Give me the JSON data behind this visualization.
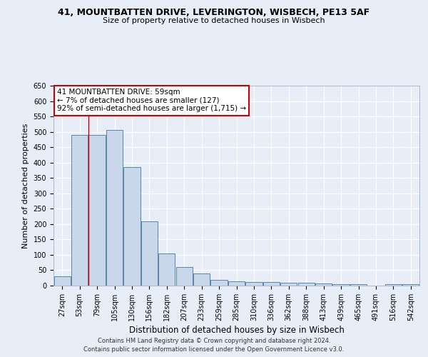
{
  "title_line1": "41, MOUNTBATTEN DRIVE, LEVERINGTON, WISBECH, PE13 5AF",
  "title_line2": "Size of property relative to detached houses in Wisbech",
  "xlabel": "Distribution of detached houses by size in Wisbech",
  "ylabel": "Number of detached properties",
  "categories": [
    "27sqm",
    "53sqm",
    "79sqm",
    "105sqm",
    "130sqm",
    "156sqm",
    "182sqm",
    "207sqm",
    "233sqm",
    "259sqm",
    "285sqm",
    "310sqm",
    "336sqm",
    "362sqm",
    "388sqm",
    "413sqm",
    "439sqm",
    "465sqm",
    "491sqm",
    "516sqm",
    "542sqm"
  ],
  "values": [
    30,
    490,
    490,
    505,
    385,
    210,
    105,
    60,
    40,
    18,
    14,
    12,
    11,
    10,
    9,
    6,
    5,
    4,
    1,
    4,
    5
  ],
  "bar_color": "#c8d8ea",
  "bar_edge_color": "#5588aa",
  "annotation_text": "41 MOUNTBATTEN DRIVE: 59sqm\n← 7% of detached houses are smaller (127)\n92% of semi-detached houses are larger (1,715) →",
  "annotation_box_color": "#ffffff",
  "annotation_edge_color": "#cc0000",
  "red_line_x": 1.5,
  "ylim": [
    0,
    650
  ],
  "yticks": [
    0,
    50,
    100,
    150,
    200,
    250,
    300,
    350,
    400,
    450,
    500,
    550,
    600,
    650
  ],
  "footer_line1": "Contains HM Land Registry data © Crown copyright and database right 2024.",
  "footer_line2": "Contains public sector information licensed under the Open Government Licence v3.0.",
  "background_color": "#e8eef8",
  "plot_background": "#e8eef8",
  "grid_color": "#ffffff",
  "title_fontsize": 9,
  "subtitle_fontsize": 8,
  "tick_fontsize": 7,
  "ylabel_fontsize": 8,
  "xlabel_fontsize": 8.5,
  "ann_fontsize": 7.5,
  "footer_fontsize": 6
}
